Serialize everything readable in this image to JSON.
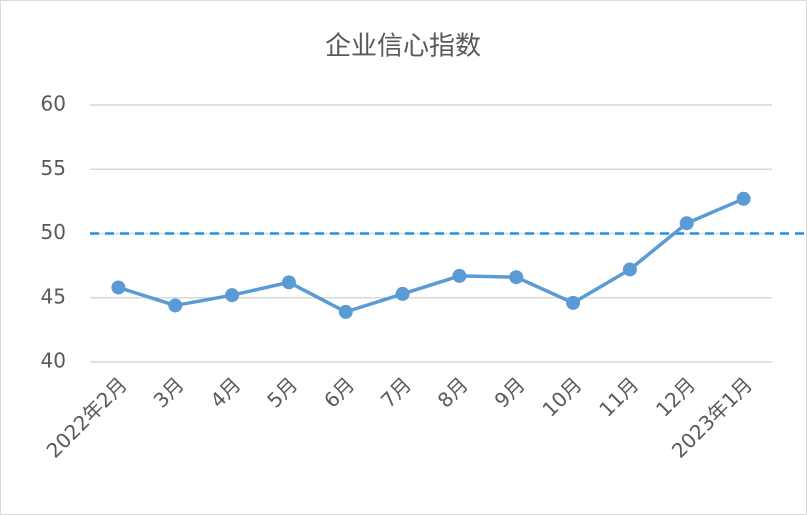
{
  "chart_data": {
    "type": "line",
    "title": "企业信心指数",
    "categories": [
      "2022年2月",
      "3月",
      "4月",
      "5月",
      "6月",
      "7月",
      "8月",
      "9月",
      "10月",
      "11月",
      "12月",
      "2023年1月"
    ],
    "series": [
      {
        "name": "企业信心指数",
        "color": "#5b9bd5",
        "values": [
          45.8,
          44.4,
          45.2,
          46.2,
          43.9,
          45.3,
          46.7,
          46.6,
          44.6,
          47.2,
          50.8,
          52.7
        ]
      }
    ],
    "reference_line": {
      "value": 50,
      "color": "#1e90e8"
    },
    "ylim": [
      40,
      60
    ],
    "yticks": [
      40,
      45,
      50,
      55,
      60
    ],
    "grid": true
  }
}
